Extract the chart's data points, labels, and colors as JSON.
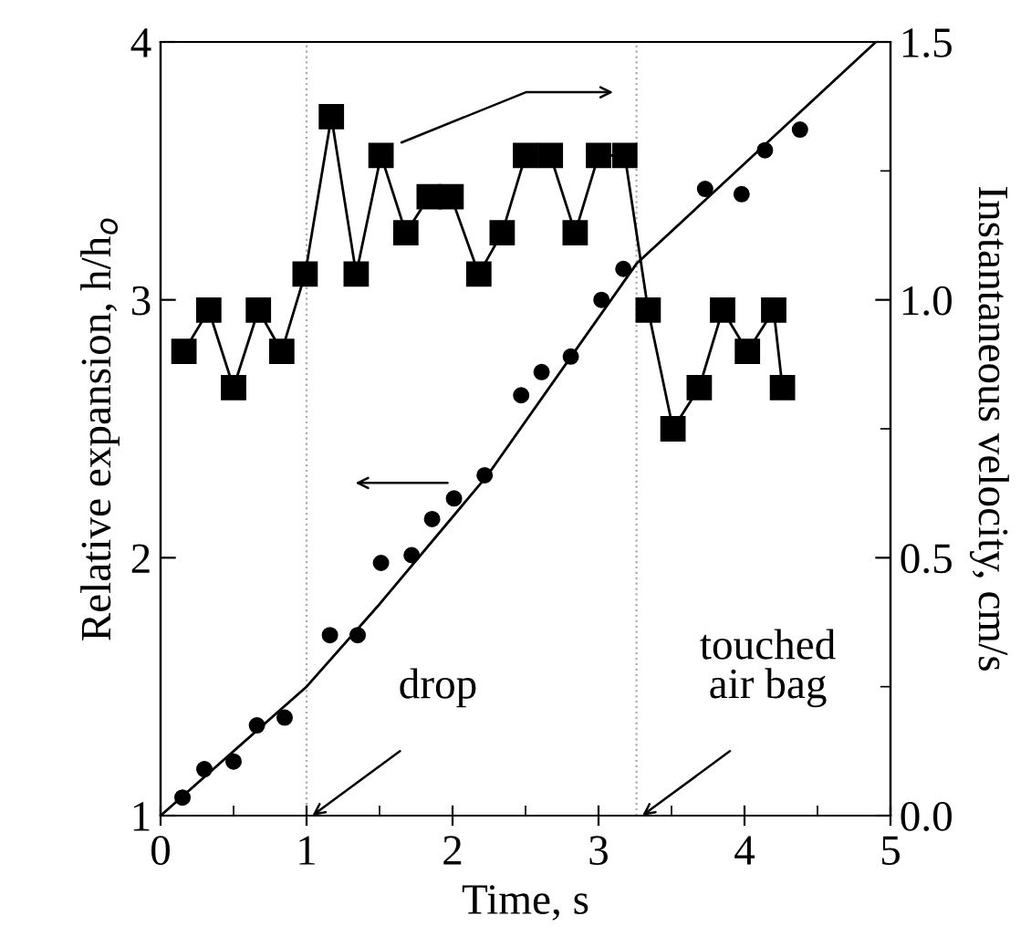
{
  "chart_data": {
    "type": "scatter",
    "xlabel": "Time, s",
    "ylabel": "Relative expansion, h/h$_{o}$",
    "y2label": "Instantaneous velocity, cm/s",
    "xlim": [
      0,
      5
    ],
    "xticks": [
      0,
      1,
      2,
      3,
      4,
      5
    ],
    "ylim": [
      1,
      4
    ],
    "yticks": [
      1,
      2,
      3,
      4
    ],
    "y2lim": [
      0,
      1.5
    ],
    "y2ticks": [
      {
        "value": 0,
        "label": "0.0"
      },
      {
        "value": 0.5,
        "label": "0.5"
      },
      {
        "value": 1.0,
        "label": "1.0"
      },
      {
        "value": 1.5,
        "label": "1.5"
      }
    ],
    "grid": false,
    "legend": false,
    "series": [
      {
        "marker": "circle",
        "color": "#000000",
        "x": [
          0.15,
          0.3,
          0.5,
          0.66,
          0.85,
          1.16,
          1.35,
          1.51,
          1.72,
          1.86,
          2.01,
          2.22,
          2.47,
          2.61,
          2.81,
          3.02,
          3.17,
          3.73,
          3.98,
          4.14,
          4.38
        ],
        "values": [
          1.07,
          1.18,
          1.21,
          1.35,
          1.38,
          1.7,
          1.7,
          1.98,
          2.01,
          2.15,
          2.23,
          2.32,
          2.63,
          2.72,
          2.78,
          3.0,
          3.12,
          3.43,
          3.41,
          3.58,
          3.66
        ]
      },
      {
        "type": "line",
        "marker": "none",
        "color": "#000000",
        "x": [
          0,
          1,
          1.5,
          2.24,
          3.26,
          4.9
        ],
        "values": [
          1,
          1.5,
          1.82,
          2.32,
          3.14,
          4
        ]
      },
      {
        "type": "line",
        "marker": "square",
        "axis": "y2",
        "color": "#000000",
        "x": [
          0.16,
          0.33,
          0.5,
          0.67,
          0.83,
          0.99,
          1.17,
          1.34,
          1.51,
          1.68,
          1.84,
          1.99,
          2.18,
          2.34,
          2.5,
          2.67,
          2.84,
          3.0,
          3.18,
          3.34,
          3.51,
          3.69,
          3.85,
          4.02,
          4.2,
          4.26
        ],
        "values": [
          0.9,
          0.98,
          0.83,
          0.98,
          0.9,
          1.05,
          1.355,
          1.05,
          1.28,
          1.13,
          1.2,
          1.2,
          1.05,
          1.13,
          1.28,
          1.28,
          1.13,
          1.28,
          1.28,
          0.98,
          0.75,
          0.83,
          0.98,
          0.9,
          0.98,
          0.83
        ]
      }
    ],
    "ref_lines": [
      {
        "axis": "x",
        "value": 1,
        "label": "drop",
        "color": "#aaaaaa",
        "line_style": "dotted"
      },
      {
        "axis": "x",
        "value": 3.26,
        "label": "touched\nair bag",
        "color": "#aaaaaa",
        "line_style": "dotted"
      }
    ]
  }
}
